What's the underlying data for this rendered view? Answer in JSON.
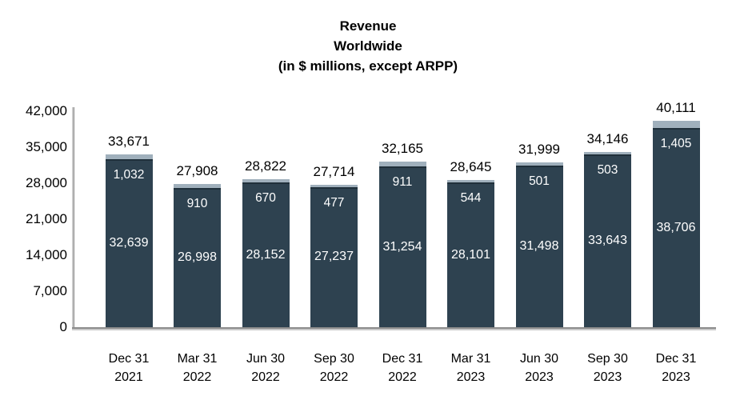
{
  "title": [
    "Revenue",
    "Worldwide",
    "(in $ millions, except ARPP)"
  ],
  "colors": {
    "bar_dark": "#2e4250",
    "bar_dark_edge": "#20303b",
    "bar_light": "#a0b0bc",
    "axis_line": "#8c8c8c",
    "axis_shadow": "#c9c9c9",
    "total_text": "#000000",
    "inside_text": "#ffffff"
  },
  "y_axis": {
    "max": 42000,
    "ticks": [
      {
        "value": 42000,
        "label": "42,000"
      },
      {
        "value": 35000,
        "label": "35,000"
      },
      {
        "value": 28000,
        "label": "28,000"
      },
      {
        "value": 21000,
        "label": "21,000"
      },
      {
        "value": 14000,
        "label": "14,000"
      },
      {
        "value": 7000,
        "label": "7,000"
      },
      {
        "value": 0,
        "label": "0"
      }
    ]
  },
  "chart_data": {
    "type": "bar",
    "stacked": true,
    "title": "Revenue Worldwide (in $ millions, except ARPP)",
    "xlabel": "",
    "ylabel": "",
    "ylim": [
      0,
      42000
    ],
    "grid": false,
    "legend": false,
    "categories": [
      [
        "Dec 31",
        "2021"
      ],
      [
        "Mar 31",
        "2022"
      ],
      [
        "Jun 30",
        "2022"
      ],
      [
        "Sep 30",
        "2022"
      ],
      [
        "Dec 31",
        "2022"
      ],
      [
        "Mar 31",
        "2023"
      ],
      [
        "Jun 30",
        "2023"
      ],
      [
        "Sep 30",
        "2023"
      ],
      [
        "Dec 31",
        "2023"
      ]
    ],
    "series": [
      {
        "id": "bottom-segment",
        "values": [
          32639,
          26998,
          28152,
          27237,
          31254,
          28101,
          31498,
          33643,
          38706
        ],
        "labels": [
          "32,639",
          "26,998",
          "28,152",
          "27,237",
          "31,254",
          "28,101",
          "31,498",
          "33,643",
          "38,706"
        ]
      },
      {
        "id": "top-segment",
        "values": [
          1032,
          910,
          670,
          477,
          911,
          544,
          501,
          503,
          1405
        ],
        "labels": [
          "1,032",
          "910",
          "670",
          "477",
          "911",
          "544",
          "501",
          "503",
          "1,405"
        ]
      }
    ],
    "totals": {
      "values": [
        33671,
        27908,
        28822,
        27714,
        32165,
        28645,
        31999,
        34146,
        40111
      ],
      "labels": [
        "33,671",
        "27,908",
        "28,822",
        "27,714",
        "32,165",
        "28,645",
        "31,999",
        "34,146",
        "40,111"
      ]
    }
  }
}
